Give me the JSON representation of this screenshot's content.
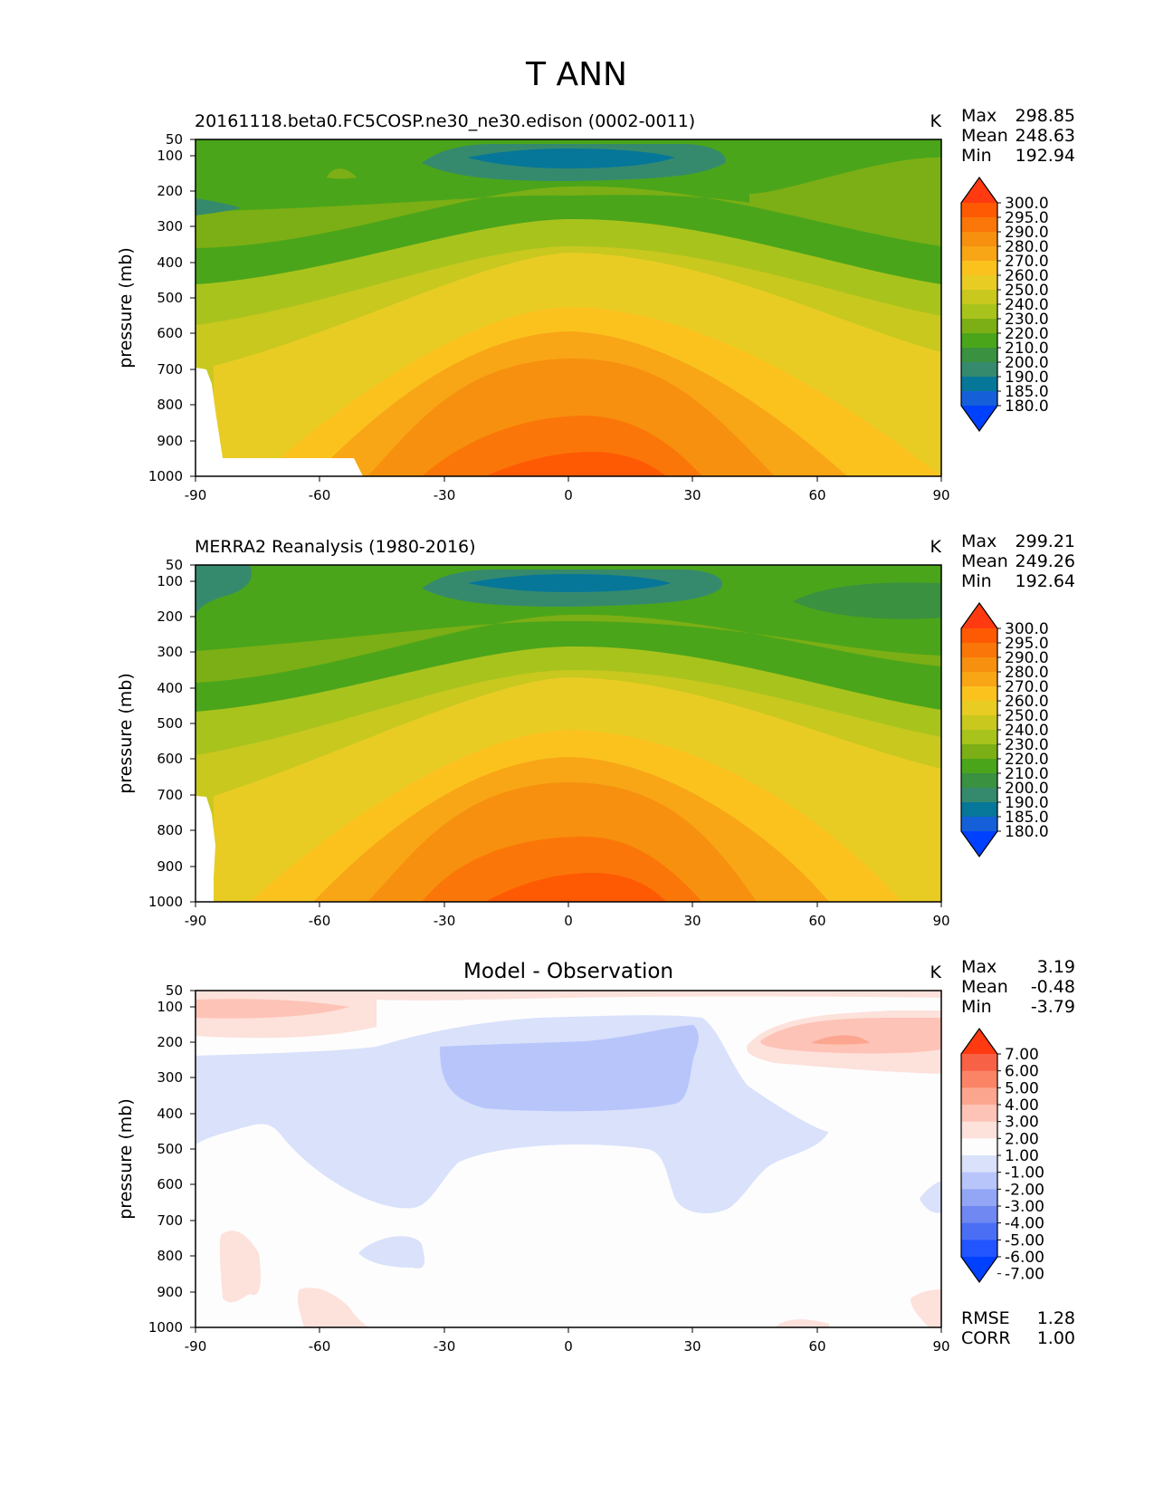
{
  "figure": {
    "title": "T ANN",
    "colors": {
      "tempLevels": [
        "#0040ff",
        "#1560d8",
        "#077799",
        "#358a6e",
        "#3a9140",
        "#4ba51a",
        "#7caf15",
        "#a9c31d",
        "#c8c81f",
        "#e8cc24",
        "#fbc21e",
        "#f8a516",
        "#f7900e",
        "#fb7608",
        "#fe5a03",
        "#ff3a10"
      ],
      "diffLevels": [
        "#0040ff",
        "#2255ff",
        "#4a6ff5",
        "#6f88f2",
        "#93a5f5",
        "#b7c5fa",
        "#d9e1fb",
        "#fdfdfd",
        "#fde1db",
        "#fdc3b6",
        "#fca58f",
        "#fb8467",
        "#f76145",
        "#ff3a10"
      ]
    },
    "panels": [
      {
        "id": "test",
        "title": "20161118.beta0.FC5COSP.ne30_ne30.edison (0002-0011)",
        "units": "K",
        "stats": [
          {
            "label": "Max",
            "value": "298.85"
          },
          {
            "label": "Mean",
            "value": "248.63"
          },
          {
            "label": "Min",
            "value": "192.94"
          }
        ],
        "ylabel": "pressure (mb)",
        "colorbar": [
          "300.0",
          "295.0",
          "290.0",
          "280.0",
          "270.0",
          "260.0",
          "250.0",
          "240.0",
          "230.0",
          "220.0",
          "210.0",
          "200.0",
          "190.0",
          "185.0",
          "180.0"
        ]
      },
      {
        "id": "ref",
        "title": "MERRA2 Reanalysis (1980-2016)",
        "units": "K",
        "stats": [
          {
            "label": "Max",
            "value": "299.21"
          },
          {
            "label": "Mean",
            "value": "249.26"
          },
          {
            "label": "Min",
            "value": "192.64"
          }
        ],
        "ylabel": "pressure (mb)",
        "colorbar": [
          "300.0",
          "295.0",
          "290.0",
          "280.0",
          "270.0",
          "260.0",
          "250.0",
          "240.0",
          "230.0",
          "220.0",
          "210.0",
          "200.0",
          "190.0",
          "185.0",
          "180.0"
        ]
      },
      {
        "id": "diff",
        "title": "Model - Observation",
        "units": "K",
        "stats": [
          {
            "label": "Max",
            "value": "3.19"
          },
          {
            "label": "Mean",
            "value": "-0.48"
          },
          {
            "label": "Min",
            "value": "-3.79"
          }
        ],
        "extra_stats": [
          {
            "label": "RMSE",
            "value": "1.28"
          },
          {
            "label": "CORR",
            "value": "1.00"
          }
        ],
        "ylabel": "pressure (mb)",
        "colorbar": [
          "7.00",
          "6.00",
          "5.00",
          "4.00",
          "3.00",
          "2.00",
          "1.00",
          "-1.00",
          "-2.00",
          "-3.00",
          "-4.00",
          "-5.00",
          "-6.00",
          "-7.00"
        ]
      }
    ]
  },
  "chart_data": [
    {
      "type": "contour",
      "title": "20161118.beta0.FC5COSP.ne30_ne30.edison (0002-0011)",
      "variable": "T",
      "season": "ANN",
      "units": "K",
      "xlabel": "",
      "ylabel": "pressure (mb)",
      "xlim": [
        -90,
        90
      ],
      "xticks": [
        -90,
        -60,
        -30,
        0,
        30,
        60,
        90
      ],
      "ylim": [
        1000,
        50
      ],
      "yticks": [
        50,
        100,
        200,
        300,
        400,
        500,
        600,
        700,
        800,
        900,
        1000
      ],
      "levels": [
        180,
        185,
        190,
        200,
        210,
        220,
        230,
        240,
        250,
        260,
        270,
        280,
        290,
        295,
        300
      ],
      "max": 298.85,
      "mean": 248.63,
      "min": 192.94
    },
    {
      "type": "contour",
      "title": "MERRA2 Reanalysis (1980-2016)",
      "variable": "T",
      "season": "ANN",
      "units": "K",
      "xlabel": "",
      "ylabel": "pressure (mb)",
      "xlim": [
        -90,
        90
      ],
      "xticks": [
        -90,
        -60,
        -30,
        0,
        30,
        60,
        90
      ],
      "ylim": [
        1000,
        50
      ],
      "yticks": [
        50,
        100,
        200,
        300,
        400,
        500,
        600,
        700,
        800,
        900,
        1000
      ],
      "levels": [
        180,
        185,
        190,
        200,
        210,
        220,
        230,
        240,
        250,
        260,
        270,
        280,
        290,
        295,
        300
      ],
      "max": 299.21,
      "mean": 249.26,
      "min": 192.64
    },
    {
      "type": "contour",
      "title": "Model - Observation",
      "variable": "T",
      "season": "ANN",
      "units": "K",
      "xlabel": "",
      "ylabel": "pressure (mb)",
      "xlim": [
        -90,
        90
      ],
      "xticks": [
        -90,
        -60,
        -30,
        0,
        30,
        60,
        90
      ],
      "ylim": [
        1000,
        50
      ],
      "yticks": [
        50,
        100,
        200,
        300,
        400,
        500,
        600,
        700,
        800,
        900,
        1000
      ],
      "levels": [
        -7,
        -6,
        -5,
        -4,
        -3,
        -2,
        -1,
        1,
        2,
        3,
        4,
        5,
        6,
        7
      ],
      "max": 3.19,
      "mean": -0.48,
      "min": -3.79,
      "rmse": 1.28,
      "corr": 1.0
    }
  ]
}
